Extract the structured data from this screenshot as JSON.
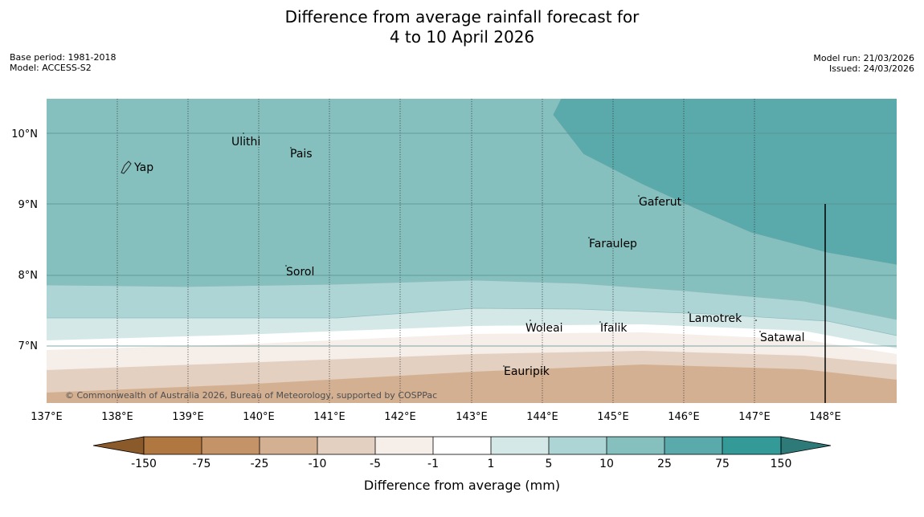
{
  "title": {
    "line1": "Difference from average rainfall forecast for",
    "line2": "4 to 10 April 2026"
  },
  "meta": {
    "base_period": "Base period: 1981-2018",
    "model": "Model: ACCESS-S2",
    "model_run": "Model run: 21/03/2026",
    "issued": "Issued: 24/03/2026"
  },
  "map": {
    "lon_labels": [
      "137°E",
      "138°E",
      "139°E",
      "140°E",
      "141°E",
      "142°E",
      "143°E",
      "144°E",
      "145°E",
      "146°E",
      "147°E",
      "148°E"
    ],
    "lat_labels": [
      "10°N",
      "9°N",
      "8°N",
      "7°N"
    ],
    "places": [
      "Ulithi",
      "Pais",
      "Yap",
      "Gaferut",
      "Faraulep",
      "Sorol",
      "Lamotrek",
      "Woleai",
      "Ifalik",
      "Satawal",
      "Eauripik"
    ],
    "copyright": "© Commonwealth of Australia 2026, Bureau of Meteorology, supported by COSPPac",
    "colors": {
      "gt75": "#5aaaab",
      "c25_75": "#85c0bf",
      "c10_25": "#add5d5",
      "c5_10": "#d4e8e7",
      "c1_5": "#ffffff",
      "cm1_1": "#f5eee9",
      "cm5_m1": "#e3d0c0",
      "cm10_m5": "#d4b092"
    }
  },
  "colorbar": {
    "ticks": [
      "-150",
      "-75",
      "-25",
      "-10",
      "-5",
      "-1",
      "1",
      "5",
      "10",
      "25",
      "75",
      "150"
    ],
    "colors": [
      "#8b5a2b",
      "#b07840",
      "#c49367",
      "#d4b092",
      "#e3d0c0",
      "#f5eee9",
      "#ffffff",
      "#d4e8e7",
      "#add5d5",
      "#85c0bf",
      "#5aaaab",
      "#339a98",
      "#2d7a78"
    ],
    "label": "Difference from average (mm)"
  }
}
